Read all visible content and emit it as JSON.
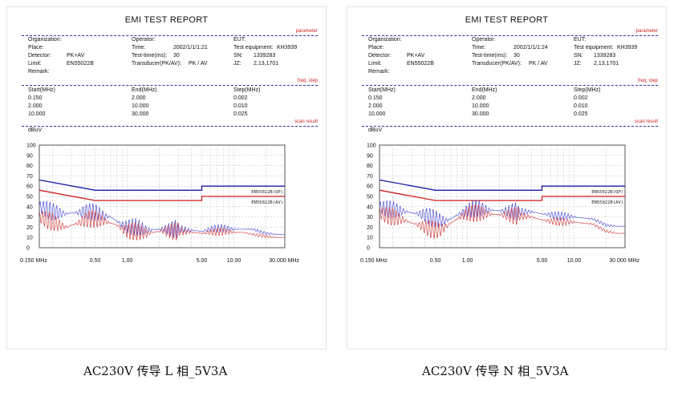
{
  "report_title": "EMI TEST REPORT",
  "section_labels": {
    "parameter": "parameter",
    "freq_step": "freq. step",
    "scan_result": "scan result"
  },
  "panels": [
    {
      "caption": "AC230V 传导 L 相_5V3A",
      "fields": {
        "organization_label": "Organization:",
        "organization_value": "",
        "operator_label": "Operator:",
        "operator_value": "",
        "eut_label": "EUT:",
        "eut_value": "",
        "place_label": "Place:",
        "place_value": "",
        "time_label": "Time:",
        "time_value": "2002/1/1/1:21",
        "test_equipment_label": "Test equipment:",
        "test_equipment_value": "KH3939",
        "detector_label": "Detector:",
        "detector_value": "PK+AV",
        "test_time_label": "Test-time(ms):",
        "test_time_value": "30",
        "sn_label": "SN:",
        "sn_value": "1339283",
        "limit_label": "Limit:",
        "limit_value": "EN55022B",
        "transducer_label": "Transducer(PK/AV):",
        "transducer_value": "PK  /  AV",
        "jz_label": "JZ:",
        "jz_value": "2,13,1701",
        "remark_label": "Remark:"
      }
    },
    {
      "caption": "AC230V 传导 N 相_5V3A",
      "fields": {
        "organization_label": "Organization:",
        "organization_value": "",
        "operator_label": "Operator:",
        "operator_value": "",
        "eut_label": "EUT:",
        "eut_value": "",
        "place_label": "Place:",
        "place_value": "",
        "time_label": "Time:",
        "time_value": "2002/1/1/1:24",
        "test_equipment_label": "Test equipment:",
        "test_equipment_value": "KH3939",
        "detector_label": "Detector:",
        "detector_value": "PK+AV",
        "test_time_label": "Test-time(ms):",
        "test_time_value": "30",
        "sn_label": "SN:",
        "sn_value": "1339283",
        "limit_label": "Limit:",
        "limit_value": "EN55022B",
        "transducer_label": "Transducer(PK/AV):",
        "transducer_value": "PK  /  AV",
        "jz_label": "JZ:",
        "jz_value": "2,13,1701",
        "remark_label": "Remark:"
      }
    }
  ],
  "freq_table": {
    "headers": [
      "Start(MHz)",
      "End(MHz)",
      "Step(MHz)"
    ],
    "rows": [
      [
        "0.150",
        "2.000",
        "0.002"
      ],
      [
        "2.000",
        "10.000",
        "0.010"
      ],
      [
        "10.000",
        "30.000",
        "0.025"
      ]
    ]
  },
  "colors": {
    "qp_limit": "#1a1aa8",
    "av_limit": "#cc1c1c",
    "pk_trace": "#3a3ad0",
    "av_trace": "#cc2a2a",
    "grid": "#bbbbbb",
    "section_line": "#3333aa"
  },
  "chart_data": [
    {
      "type": "line",
      "title": "",
      "ylabel": "dBuV",
      "xlabel": "",
      "x_scale": "log",
      "xlim": [
        0.15,
        30
      ],
      "ylim": [
        0,
        100
      ],
      "y_ticks": [
        0,
        10,
        20,
        30,
        40,
        50,
        60,
        70,
        80,
        90,
        100
      ],
      "x_tick_labels": [
        {
          "value": 0.15,
          "label": "0.150 MHz"
        },
        {
          "value": 0.5,
          "label": "0.50"
        },
        {
          "value": 1,
          "label": "1.00"
        },
        {
          "value": 5,
          "label": "5.00"
        },
        {
          "value": 10,
          "label": "10.00"
        },
        {
          "value": 30,
          "label": "30.000 MHz"
        }
      ],
      "grid": true,
      "limit_lines": [
        {
          "name": "EN55022B(QP)",
          "x": [
            0.15,
            0.5,
            5,
            5,
            30
          ],
          "y": [
            66,
            56,
            56,
            60,
            60
          ]
        },
        {
          "name": "EN55022B(AV)",
          "x": [
            0.15,
            0.5,
            5,
            5,
            30
          ],
          "y": [
            56,
            46,
            46,
            50,
            50
          ]
        }
      ],
      "series": [
        {
          "x": [
            0.15,
            0.17,
            0.2,
            0.23,
            0.27,
            0.3,
            0.35,
            0.4,
            0.45,
            0.5,
            0.55,
            0.6,
            0.7,
            0.8,
            0.9,
            1.0,
            1.2,
            1.5,
            2.0,
            3.0,
            4.0,
            5.0,
            6.0,
            8.0,
            10.0,
            12.0,
            15.0,
            20.0,
            25.0,
            30.0
          ],
          "values": [
            40,
            38,
            35,
            34,
            33,
            34,
            34,
            35,
            35,
            34,
            33,
            31,
            30,
            26,
            22,
            20,
            20,
            17,
            18,
            18,
            17,
            16,
            18,
            19,
            18,
            18,
            18,
            14,
            13,
            13
          ]
        },
        {
          "x": [
            0.15,
            0.17,
            0.2,
            0.23,
            0.27,
            0.3,
            0.35,
            0.4,
            0.45,
            0.5,
            0.55,
            0.6,
            0.7,
            0.8,
            0.9,
            1.0,
            1.2,
            1.5,
            2.0,
            3.0,
            4.0,
            5.0,
            6.0,
            8.0,
            10.0,
            12.0,
            15.0,
            20.0,
            25.0,
            30.0
          ],
          "values": [
            30,
            28,
            25,
            22,
            20,
            22,
            24,
            27,
            28,
            28,
            27,
            26,
            24,
            22,
            18,
            16,
            16,
            14,
            16,
            16,
            15,
            14,
            15,
            16,
            15,
            15,
            13,
            11,
            10,
            10
          ]
        }
      ]
    },
    {
      "type": "line",
      "title": "",
      "ylabel": "dBuV",
      "xlabel": "",
      "x_scale": "log",
      "xlim": [
        0.15,
        30
      ],
      "ylim": [
        0,
        100
      ],
      "y_ticks": [
        0,
        10,
        20,
        30,
        40,
        50,
        60,
        70,
        80,
        90,
        100
      ],
      "x_tick_labels": [
        {
          "value": 0.15,
          "label": "0.150 MHz"
        },
        {
          "value": 0.5,
          "label": "0.50"
        },
        {
          "value": 1,
          "label": "1.00"
        },
        {
          "value": 5,
          "label": "5.00"
        },
        {
          "value": 10,
          "label": "10.00"
        },
        {
          "value": 30,
          "label": "30.000 MHz"
        }
      ],
      "grid": true,
      "limit_lines": [
        {
          "name": "EN55022B(QP)",
          "x": [
            0.15,
            0.5,
            5,
            5,
            30
          ],
          "y": [
            66,
            56,
            56,
            60,
            60
          ]
        },
        {
          "name": "EN55022B(AV)",
          "x": [
            0.15,
            0.5,
            5,
            5,
            30
          ],
          "y": [
            56,
            46,
            46,
            50,
            50
          ]
        }
      ],
      "series": [
        {
          "x": [
            0.15,
            0.17,
            0.2,
            0.23,
            0.27,
            0.3,
            0.35,
            0.4,
            0.45,
            0.5,
            0.55,
            0.6,
            0.7,
            0.8,
            0.9,
            1.0,
            1.2,
            1.5,
            2.0,
            3.0,
            4.0,
            5.0,
            6.0,
            8.0,
            10.0,
            12.0,
            15.0,
            20.0,
            25.0,
            30.0
          ],
          "values": [
            40,
            38,
            37,
            36,
            35,
            34,
            33,
            32,
            30,
            28,
            27,
            26,
            28,
            32,
            34,
            36,
            38,
            37,
            36,
            35,
            35,
            33,
            32,
            31,
            30,
            29,
            28,
            22,
            21,
            21
          ]
        },
        {
          "x": [
            0.15,
            0.17,
            0.2,
            0.23,
            0.27,
            0.3,
            0.35,
            0.4,
            0.45,
            0.5,
            0.55,
            0.6,
            0.7,
            0.8,
            0.9,
            1.0,
            1.2,
            1.5,
            2.0,
            3.0,
            4.0,
            5.0,
            6.0,
            8.0,
            10.0,
            12.0,
            15.0,
            20.0,
            25.0,
            30.0
          ],
          "values": [
            34,
            32,
            30,
            28,
            26,
            24,
            22,
            20,
            18,
            17,
            17,
            19,
            24,
            28,
            31,
            33,
            34,
            33,
            32,
            31,
            30,
            27,
            26,
            25,
            25,
            24,
            23,
            16,
            14,
            14
          ]
        }
      ]
    }
  ]
}
